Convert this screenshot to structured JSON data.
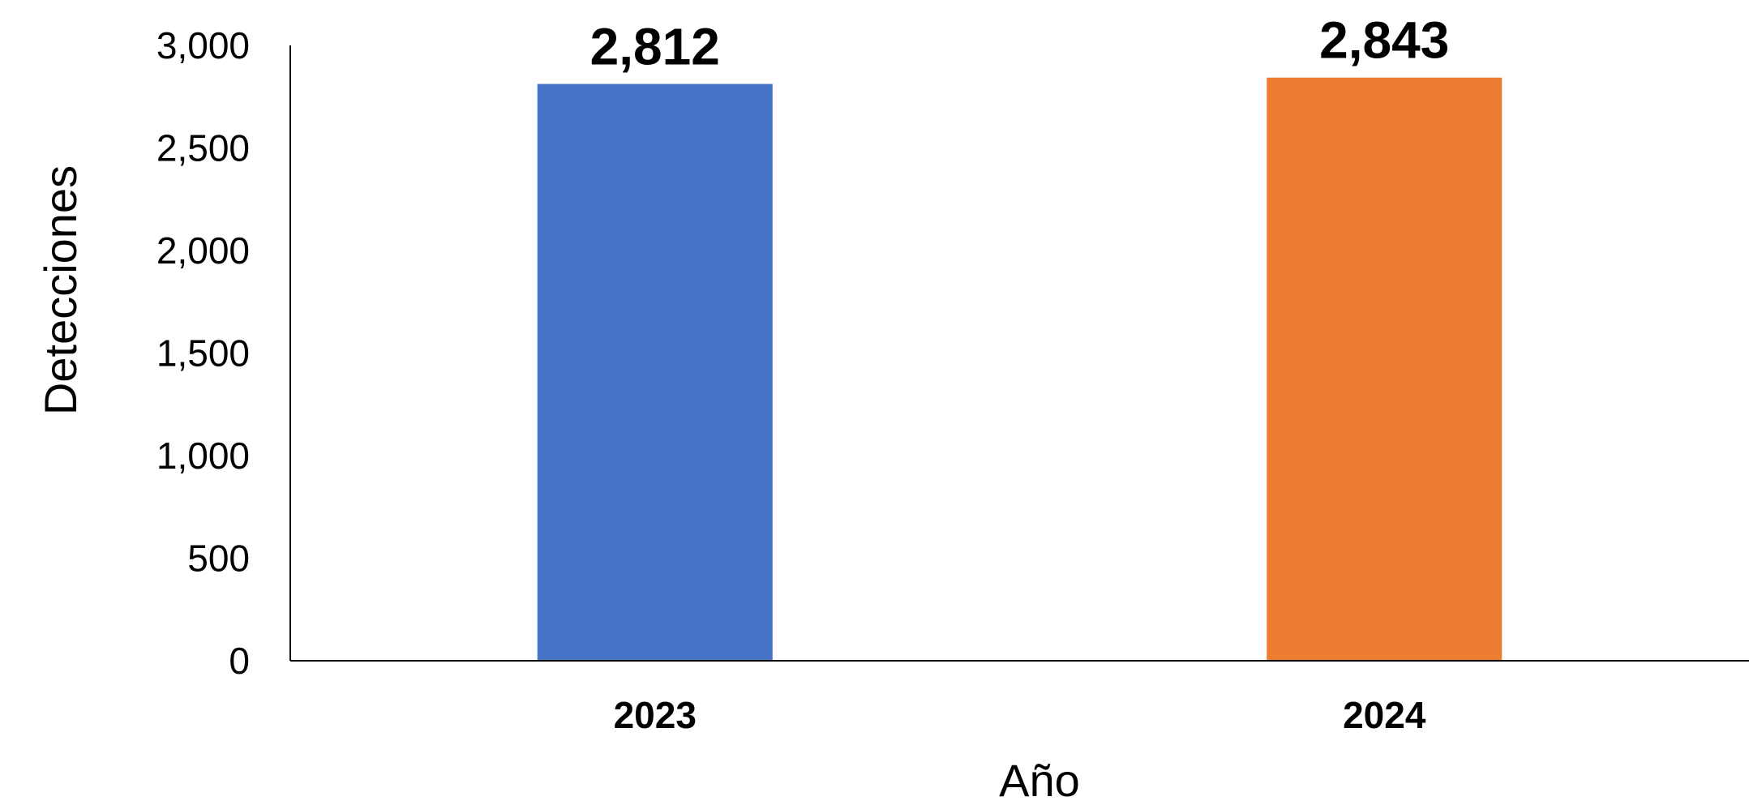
{
  "chart_data": {
    "type": "bar",
    "categories": [
      "2023",
      "2024"
    ],
    "values": [
      2812,
      2843
    ],
    "data_labels": [
      "2,812",
      "2,843"
    ],
    "colors": [
      "#4472C4",
      "#ED7D31"
    ],
    "xlabel": "Año",
    "ylabel": "Detecciones",
    "ylim": [
      0,
      3000
    ],
    "yticks": [
      0,
      500,
      1000,
      1500,
      2000,
      2500,
      3000
    ],
    "ytick_labels": [
      "0",
      "500",
      "1,000",
      "1,500",
      "2,000",
      "2,500",
      "3,000"
    ],
    "grid": false,
    "legend": "none"
  }
}
